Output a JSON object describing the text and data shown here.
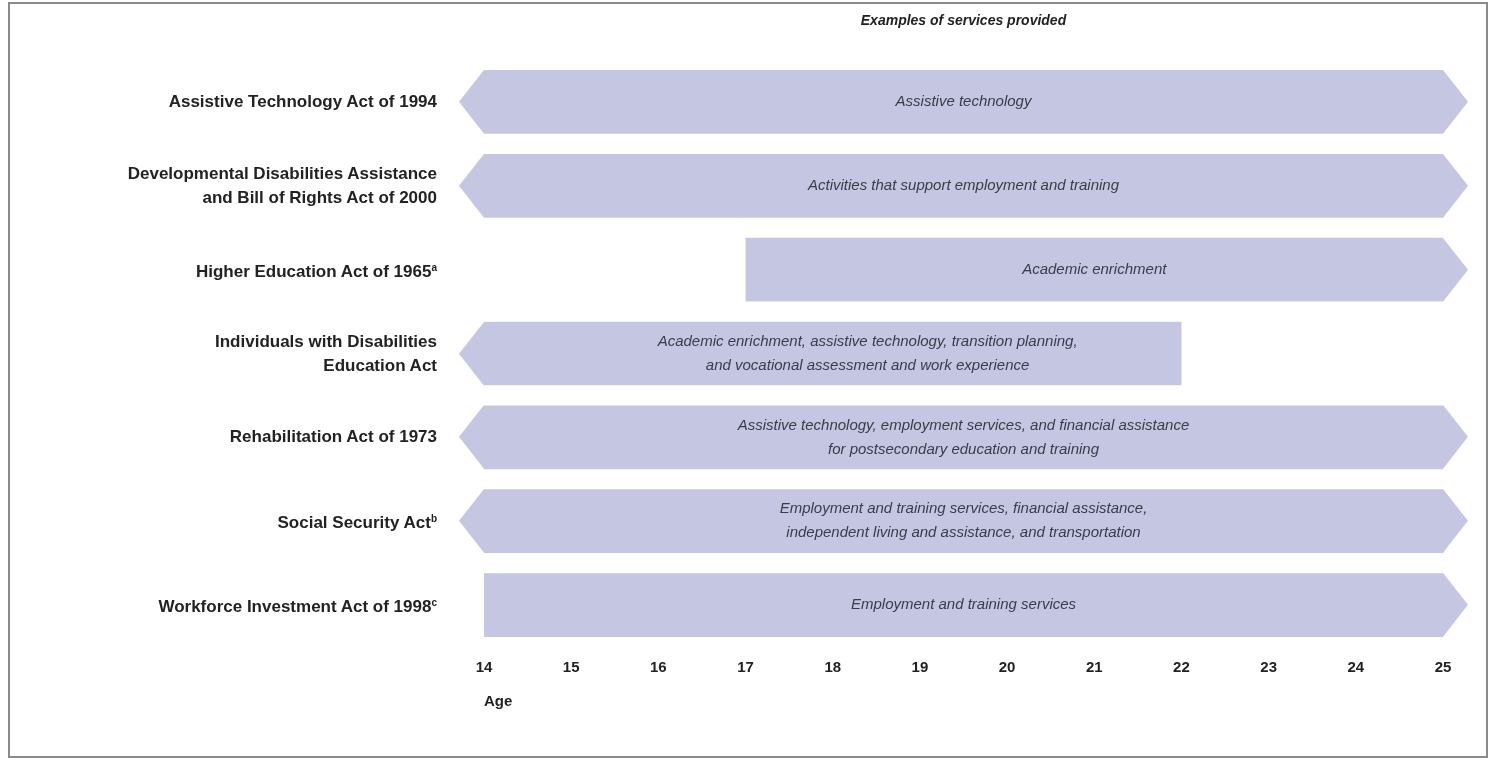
{
  "chart_data": {
    "type": "bar",
    "orientation": "horizontal",
    "title": "Examples of services provided",
    "xlabel": "Age",
    "categories": [
      "Assistive Technology Act of 1994",
      "Developmental Disabilities Assistance\nand Bill of Rights Act of 2000",
      "Higher Education Act of 1965$^{a}$",
      "Individuals with Disabilities\nEducation Act",
      "Rehabilitation Act of 1973",
      "Social Security Act$^{b}$",
      "Workforce Investment Act of 1998$^{c}$"
    ],
    "base": [
      14,
      14,
      17,
      14,
      14,
      14,
      14
    ],
    "values": [
      11,
      11,
      8,
      8,
      11,
      11,
      11
    ],
    "color": "#c5c6e2",
    "xlim": [
      14,
      25
    ],
    "xticks": [
      14,
      15,
      16,
      17,
      18,
      19,
      20,
      21,
      22,
      23,
      24,
      25
    ],
    "grid": false,
    "legend": false,
    "annotations": [
      {
        "text": "Assistive technology",
        "x": 19.5,
        "y": "Assistive Technology Act of 1994"
      },
      {
        "text": "Activities that support employment and training",
        "x": 19.5,
        "y": "Developmental Disabilities Assistance\nand Bill of Rights Act of 2000"
      },
      {
        "text": "Academic enrichment",
        "x": 21,
        "y": "Higher Education Act of 1965$^{a}$"
      },
      {
        "text": "Academic enrichment, assistive technology, transition planning,\nand vocational assessment and work experience",
        "x": 18.4,
        "y": "Individuals with Disabilities\nEducation Act"
      },
      {
        "text": "Assistive technology, employment services, and financial assistance\nfor postsecondary education and training",
        "x": 19.5,
        "y": "Rehabilitation Act of 1973"
      },
      {
        "text": "Employment and training services, financial assistance,\nindependent living and assistance, and transportation",
        "x": 19.5,
        "y": "Social Security Act$^{b}$"
      },
      {
        "text": "Employment and training services",
        "x": 19.5,
        "y": "Workforce Investment Act of 1998$^{c}$"
      }
    ]
  }
}
